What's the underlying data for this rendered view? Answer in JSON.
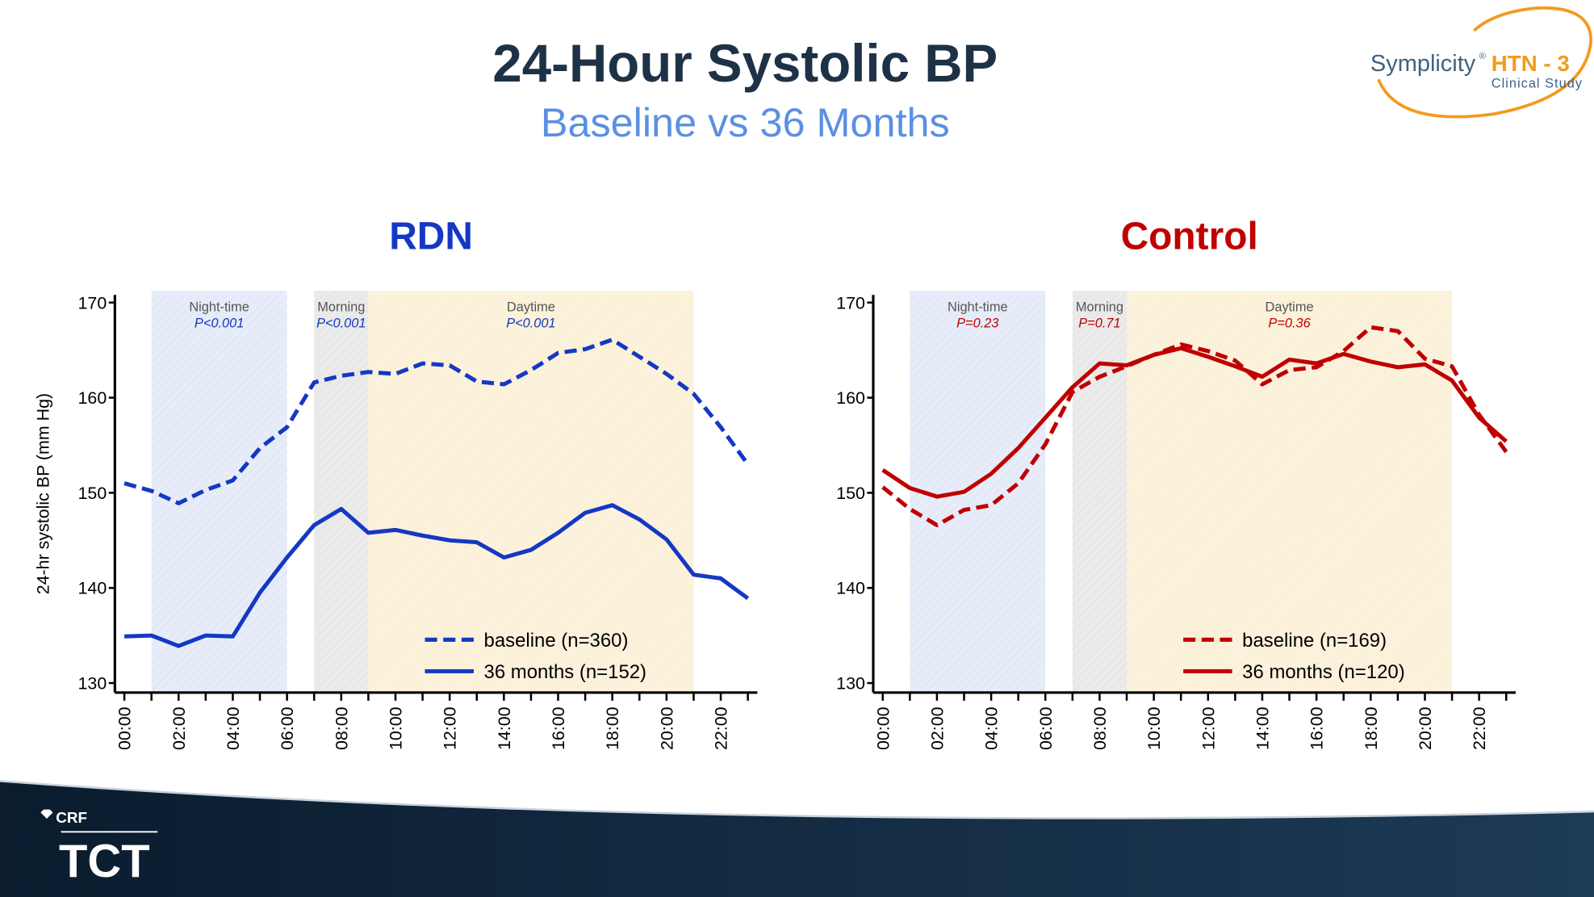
{
  "title": "24-Hour Systolic BP",
  "subtitle": "Baseline vs 36 Months",
  "logo": {
    "brand": "Symplicity",
    "mark": "®",
    "study": "HTN - 3",
    "caption": "Clinical Study"
  },
  "footer": {
    "org": "CRF",
    "event": "TCT"
  },
  "chart_data": [
    {
      "type": "line",
      "title": "RDN",
      "title_color": "#1438c4",
      "ylabel": "24-hr systolic BP (mm Hg)",
      "x": [
        0,
        1,
        2,
        3,
        4,
        5,
        6,
        7,
        8,
        9,
        10,
        11,
        12,
        13,
        14,
        15,
        16,
        17,
        18,
        19,
        20,
        21,
        22,
        23
      ],
      "xlim": [
        -0.35,
        23.35
      ],
      "xticks": [
        {
          "value": 0,
          "label": "00:00"
        },
        {
          "value": 2,
          "label": "02:00"
        },
        {
          "value": 4,
          "label": "04:00"
        },
        {
          "value": 6,
          "label": "06:00"
        },
        {
          "value": 8,
          "label": "08:00"
        },
        {
          "value": 10,
          "label": "10:00"
        },
        {
          "value": 12,
          "label": "12:00"
        },
        {
          "value": 14,
          "label": "14:00"
        },
        {
          "value": 16,
          "label": "16:00"
        },
        {
          "value": 18,
          "label": "18:00"
        },
        {
          "value": 20,
          "label": "20:00"
        },
        {
          "value": 22,
          "label": "22:00"
        }
      ],
      "xminorticks": [
        1,
        3,
        5,
        7,
        9,
        11,
        13,
        15,
        17,
        19,
        21,
        23
      ],
      "ylim": [
        129,
        170.8
      ],
      "yticks": [
        130,
        140,
        150,
        160,
        170
      ],
      "legend": "lower right",
      "bands": [
        {
          "label": "Night-time",
          "p_label": "P<0.001",
          "from": 1,
          "to": 6,
          "color": "#e4eaf7"
        },
        {
          "label": "Morning",
          "p_label": "P<0.001",
          "from": 7,
          "to": 9,
          "color": "#e8e8e8"
        },
        {
          "label": "Daytime",
          "p_label": "P<0.001",
          "from": 9,
          "to": 21,
          "color": "#fbf0d8"
        }
      ],
      "series": [
        {
          "name": "baseline (n=360)",
          "color": "#1438c4",
          "style": "dashed",
          "values": [
            151.0,
            150.2,
            148.9,
            150.3,
            151.3,
            154.7,
            156.9,
            161.6,
            162.3,
            162.7,
            162.5,
            163.6,
            163.4,
            161.7,
            161.4,
            162.9,
            164.7,
            165.1,
            166.1,
            164.3,
            162.5,
            160.4,
            156.9,
            153.0
          ]
        },
        {
          "name": "36 months (n=152)",
          "color": "#1438c4",
          "style": "solid",
          "values": [
            134.9,
            135.0,
            133.9,
            135.0,
            134.9,
            139.5,
            143.2,
            146.6,
            148.3,
            145.8,
            146.1,
            145.5,
            145.0,
            144.8,
            143.2,
            144.0,
            145.8,
            147.9,
            148.7,
            147.2,
            145.1,
            141.4,
            141.0,
            138.9
          ]
        }
      ]
    },
    {
      "type": "line",
      "title": "Control",
      "title_color": "#c00000",
      "x": [
        0,
        1,
        2,
        3,
        4,
        5,
        6,
        7,
        8,
        9,
        10,
        11,
        12,
        13,
        14,
        15,
        16,
        17,
        18,
        19,
        20,
        21,
        22,
        23
      ],
      "xlim": [
        -0.35,
        23.35
      ],
      "xticks": [
        {
          "value": 0,
          "label": "00:00"
        },
        {
          "value": 2,
          "label": "02:00"
        },
        {
          "value": 4,
          "label": "04:00"
        },
        {
          "value": 6,
          "label": "06:00"
        },
        {
          "value": 8,
          "label": "08:00"
        },
        {
          "value": 10,
          "label": "10:00"
        },
        {
          "value": 12,
          "label": "12:00"
        },
        {
          "value": 14,
          "label": "14:00"
        },
        {
          "value": 16,
          "label": "16:00"
        },
        {
          "value": 18,
          "label": "18:00"
        },
        {
          "value": 20,
          "label": "20:00"
        },
        {
          "value": 22,
          "label": "22:00"
        }
      ],
      "xminorticks": [
        1,
        3,
        5,
        7,
        9,
        11,
        13,
        15,
        17,
        19,
        21,
        23
      ],
      "ylim": [
        129,
        170.8
      ],
      "yticks": [
        130,
        140,
        150,
        160,
        170
      ],
      "legend": "lower right",
      "bands": [
        {
          "label": "Night-time",
          "p_label": "P=0.23",
          "from": 1,
          "to": 6,
          "color": "#e4eaf7"
        },
        {
          "label": "Morning",
          "p_label": "P=0.71",
          "from": 7,
          "to": 9,
          "color": "#e8e8e8"
        },
        {
          "label": "Daytime",
          "p_label": "P=0.36",
          "from": 9,
          "to": 21,
          "color": "#fbf0d8"
        }
      ],
      "series": [
        {
          "name": "baseline (n=169)",
          "color": "#c00000",
          "style": "dashed",
          "values": [
            150.6,
            148.3,
            146.6,
            148.2,
            148.7,
            151.0,
            155.1,
            160.6,
            162.2,
            163.3,
            164.5,
            165.6,
            164.9,
            163.9,
            161.4,
            162.9,
            163.2,
            164.9,
            167.4,
            167.0,
            164.1,
            163.3,
            158.2,
            154.3
          ]
        },
        {
          "name": "36 months (n=120)",
          "color": "#c00000",
          "style": "solid",
          "values": [
            152.4,
            150.5,
            149.6,
            150.1,
            152.0,
            154.7,
            157.9,
            161.1,
            163.6,
            163.4,
            164.5,
            165.2,
            164.3,
            163.3,
            162.2,
            164.0,
            163.6,
            164.6,
            163.8,
            163.2,
            163.5,
            161.8,
            157.9,
            155.4
          ]
        }
      ]
    }
  ]
}
